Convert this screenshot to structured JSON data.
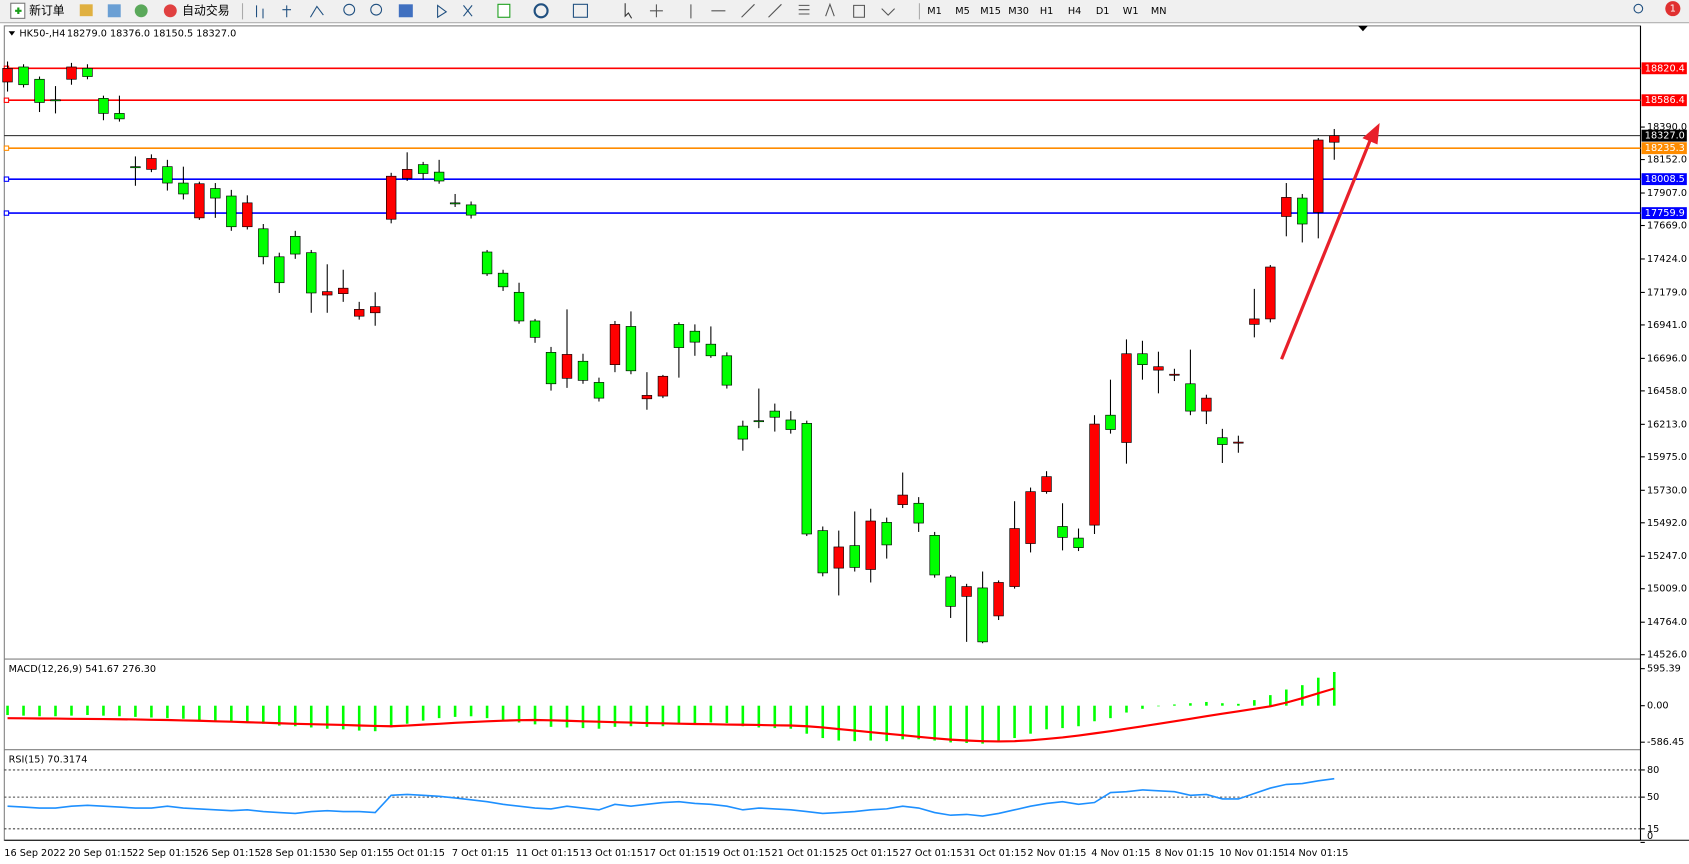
{
  "toolbar": {
    "new_order": "新订单",
    "auto_trading": "自动交易",
    "timeframes": [
      "M1",
      "M5",
      "M15",
      "M30",
      "H1",
      "H4",
      "D1",
      "W1",
      "MN"
    ],
    "notification_count": 1
  },
  "chart_data": [
    {
      "type": "candlestick",
      "title": "HK50-,H4",
      "subtitle": "18279.0 18376.0 18150.5 18327.0",
      "categories": [
        "16 Sep 2022",
        null,
        null,
        null,
        "20 Sep 01:15",
        null,
        null,
        null,
        "22 Sep 01:15",
        null,
        null,
        null,
        "26 Sep 01:15",
        null,
        null,
        null,
        "28 Sep 01:15",
        null,
        null,
        null,
        "30 Sep 01:15",
        null,
        null,
        null,
        "5 Oct 01:15",
        null,
        null,
        null,
        "7 Oct 01:15",
        null,
        null,
        null,
        "11 Oct 01:15",
        null,
        null,
        null,
        "13 Oct 01:15",
        null,
        null,
        null,
        "17 Oct 01:15",
        null,
        null,
        null,
        "19 Oct 01:15",
        null,
        null,
        null,
        "21 Oct 01:15",
        null,
        null,
        null,
        "25 Oct 01:15",
        null,
        null,
        null,
        "27 Oct 01:15",
        null,
        null,
        null,
        "31 Oct 01:15",
        null,
        null,
        null,
        "2 Nov 01:15",
        null,
        null,
        null,
        "4 Nov 01:15",
        null,
        null,
        null,
        "8 Nov 01:15",
        null,
        null,
        null,
        "10 Nov 01:15",
        null,
        null,
        null,
        "14 Nov 01:15",
        null,
        null,
        null
      ],
      "open": [
        18720,
        18830,
        18740,
        18590,
        18740,
        18820,
        18600,
        18490,
        18100,
        18080,
        18100,
        17980,
        17725,
        17940,
        17885,
        17660,
        17645,
        17440,
        17590,
        17470,
        17160,
        17170,
        17005,
        17030,
        17715,
        18015,
        18115,
        18060,
        17835,
        17820,
        17475,
        17320,
        17180,
        16970,
        16740,
        16550,
        16675,
        16520,
        16650,
        16930,
        16400,
        16420,
        16945,
        16895,
        16800,
        16715,
        16200,
        16240,
        16310,
        16245,
        16220,
        15435,
        15160,
        15325,
        15150,
        15495,
        15625,
        15635,
        15400,
        15095,
        14953,
        15015,
        14810,
        15025,
        15340,
        15720,
        15465,
        15380,
        15475,
        16280,
        16080,
        16730,
        16610,
        16580,
        16510,
        16310,
        16115,
        16080,
        16945,
        16985,
        17735,
        17870,
        17765,
        18279
      ],
      "high": [
        18870,
        18850,
        18760,
        18690,
        18860,
        18850,
        18620,
        18620,
        18175,
        18190,
        18150,
        18100,
        17990,
        17980,
        17930,
        17890,
        17680,
        17470,
        17630,
        17490,
        17385,
        17345,
        17110,
        17180,
        18055,
        18205,
        18135,
        18150,
        17900,
        17845,
        17490,
        17345,
        17250,
        16985,
        16780,
        17055,
        16730,
        16555,
        16970,
        17040,
        16595,
        16575,
        16960,
        16945,
        16930,
        16740,
        16240,
        16475,
        16365,
        16310,
        16240,
        15465,
        15435,
        15575,
        15595,
        15530,
        15860,
        15680,
        15425,
        15110,
        15045,
        15135,
        15070,
        15650,
        15750,
        15870,
        15635,
        15450,
        16280,
        16540,
        16835,
        16825,
        16745,
        16620,
        16760,
        16430,
        16180,
        16130,
        17205,
        17380,
        17980,
        17900,
        18310,
        18376
      ],
      "low": [
        18650,
        18680,
        18500,
        18490,
        18700,
        18740,
        18440,
        18430,
        17960,
        18060,
        17925,
        17860,
        17710,
        17725,
        17630,
        17640,
        17385,
        17175,
        17425,
        17030,
        17030,
        17110,
        16980,
        16935,
        17685,
        17995,
        18005,
        17975,
        17805,
        17720,
        17300,
        17190,
        16950,
        16810,
        16460,
        16480,
        16510,
        16380,
        16595,
        16580,
        16320,
        16405,
        16555,
        16715,
        16700,
        16475,
        16020,
        16185,
        16160,
        16145,
        15395,
        15100,
        14960,
        15135,
        15055,
        15230,
        15600,
        15425,
        15090,
        14795,
        14620,
        14610,
        14780,
        15010,
        15275,
        15705,
        15290,
        15285,
        15410,
        16145,
        15925,
        16540,
        16440,
        16530,
        16280,
        16215,
        15930,
        16005,
        16850,
        16960,
        17590,
        17545,
        17575,
        18150.5
      ],
      "close": [
        18820,
        18700,
        18570,
        18585,
        18830,
        18760,
        18490,
        18450,
        18095,
        18160,
        17980,
        17900,
        17975,
        17870,
        17660,
        17835,
        17440,
        17250,
        17460,
        17175,
        17185,
        17210,
        17055,
        17075,
        18030,
        18080,
        18050,
        17995,
        17830,
        17745,
        17315,
        17220,
        16970,
        16850,
        16510,
        16725,
        16535,
        16405,
        16945,
        16605,
        16425,
        16565,
        16775,
        16815,
        16715,
        16500,
        16105,
        16235,
        16265,
        16175,
        15410,
        15125,
        15315,
        15165,
        15505,
        15330,
        15695,
        15490,
        15110,
        14880,
        15025,
        14620,
        15055,
        15450,
        15720,
        15830,
        15385,
        15310,
        16215,
        16175,
        16730,
        16650,
        16635,
        16580,
        16310,
        16405,
        16065,
        16083,
        16985,
        17365,
        17875,
        17680,
        18295,
        18327
      ],
      "up_color": "#ff0000",
      "down_color": "#00ff00",
      "ylim": [
        14502,
        19123
      ],
      "yticks": [
        {
          "value": 14526,
          "label": "14526.0"
        },
        {
          "value": 14764,
          "label": "14764.0"
        },
        {
          "value": 15009,
          "label": "15009.0"
        },
        {
          "value": 15247,
          "label": "15247.0"
        },
        {
          "value": 15492,
          "label": "15492.0"
        },
        {
          "value": 15730,
          "label": "15730.0"
        },
        {
          "value": 15975,
          "label": "15975.0"
        },
        {
          "value": 16213,
          "label": "16213.0"
        },
        {
          "value": 16458,
          "label": "16458.0"
        },
        {
          "value": 16696,
          "label": "16696.0"
        },
        {
          "value": 16941,
          "label": "16941.0"
        },
        {
          "value": 17179,
          "label": "17179.0"
        },
        {
          "value": 17424,
          "label": "17424.0"
        },
        {
          "value": 17669,
          "label": "17669.0"
        },
        {
          "value": 17907,
          "label": "17907.0"
        },
        {
          "value": 18152,
          "label": "18152.0"
        },
        {
          "value": 18390,
          "label": "18390.0"
        }
      ],
      "levels": [
        {
          "value": 18820.4,
          "color": "#ff0000"
        },
        {
          "value": 18586.4,
          "color": "#ff0000"
        },
        {
          "value": 18235.3,
          "color": "#ff8c00"
        },
        {
          "value": 18008.5,
          "color": "#0000ff"
        },
        {
          "value": 17759.9,
          "color": "#0000ff"
        }
      ],
      "last_price": {
        "value": 18327,
        "label": "18327.0"
      }
    },
    {
      "type": "macd",
      "title": "MACD(12,26,9) 541.67 276.30",
      "ylim": [
        -672,
        715
      ],
      "yticks": [
        595.39,
        {
          "value": 0,
          "label": "0.00"
        },
        -586.45
      ],
      "histogram": {
        "color": "#00ff00",
        "values": [
          -150,
          -160,
          -170,
          -170,
          -160,
          -150,
          -160,
          -170,
          -180,
          -190,
          -200,
          -210,
          -230,
          -240,
          -260,
          -270,
          -290,
          -320,
          -330,
          -350,
          -370,
          -380,
          -400,
          -410,
          -350,
          -290,
          -240,
          -200,
          -180,
          -170,
          -200,
          -230,
          -270,
          -300,
          -340,
          -350,
          -360,
          -370,
          -340,
          -330,
          -340,
          -330,
          -300,
          -280,
          -270,
          -280,
          -330,
          -350,
          -360,
          -370,
          -450,
          -520,
          -560,
          -570,
          -560,
          -570,
          -540,
          -540,
          -560,
          -590,
          -600,
          -610,
          -580,
          -520,
          -450,
          -380,
          -360,
          -330,
          -250,
          -200,
          -110,
          -50,
          -10,
          20,
          40,
          60,
          40,
          30,
          90,
          170,
          260,
          330,
          450,
          541.67
        ]
      },
      "signal": {
        "color": "#ff0000",
        "values": [
          -200,
          -202,
          -205,
          -207,
          -210,
          -212,
          -215,
          -218,
          -222,
          -226,
          -230,
          -236,
          -242,
          -250,
          -258,
          -266,
          -274,
          -282,
          -290,
          -297,
          -303,
          -310,
          -318,
          -325,
          -330,
          -320,
          -305,
          -290,
          -275,
          -262,
          -250,
          -240,
          -233,
          -230,
          -235,
          -242,
          -250,
          -258,
          -265,
          -272,
          -278,
          -284,
          -289,
          -294,
          -298,
          -302,
          -306,
          -310,
          -314,
          -318,
          -330,
          -350,
          -375,
          -400,
          -425,
          -450,
          -475,
          -500,
          -525,
          -545,
          -560,
          -570,
          -575,
          -570,
          -555,
          -535,
          -510,
          -480,
          -445,
          -410,
          -370,
          -330,
          -290,
          -250,
          -210,
          -170,
          -130,
          -90,
          -50,
          -10,
          50,
          120,
          200,
          276.3
        ]
      }
    },
    {
      "type": "line",
      "title": "RSI(15) 70.3174",
      "color": "#1e90ff",
      "ylim": [
        0,
        100
      ],
      "yticks": [
        80,
        50,
        15,
        0
      ],
      "grid_dashed": true,
      "values": [
        40,
        39,
        38,
        38,
        40,
        41,
        40,
        39,
        38,
        38,
        40,
        38,
        37,
        36,
        35,
        36,
        34,
        33,
        32,
        34,
        35,
        34,
        34,
        33,
        52,
        53,
        52,
        51,
        49,
        47,
        45,
        42,
        40,
        38,
        37,
        40,
        38,
        36,
        42,
        40,
        42,
        44,
        45,
        43,
        42,
        40,
        36,
        38,
        37,
        36,
        34,
        32,
        33,
        34,
        36,
        37,
        40,
        38,
        33,
        30,
        31,
        29,
        32,
        36,
        40,
        43,
        45,
        42,
        44,
        55,
        56,
        58,
        57,
        56,
        52,
        53,
        48,
        48,
        54,
        60,
        64,
        65,
        68,
        70.3174
      ]
    }
  ]
}
